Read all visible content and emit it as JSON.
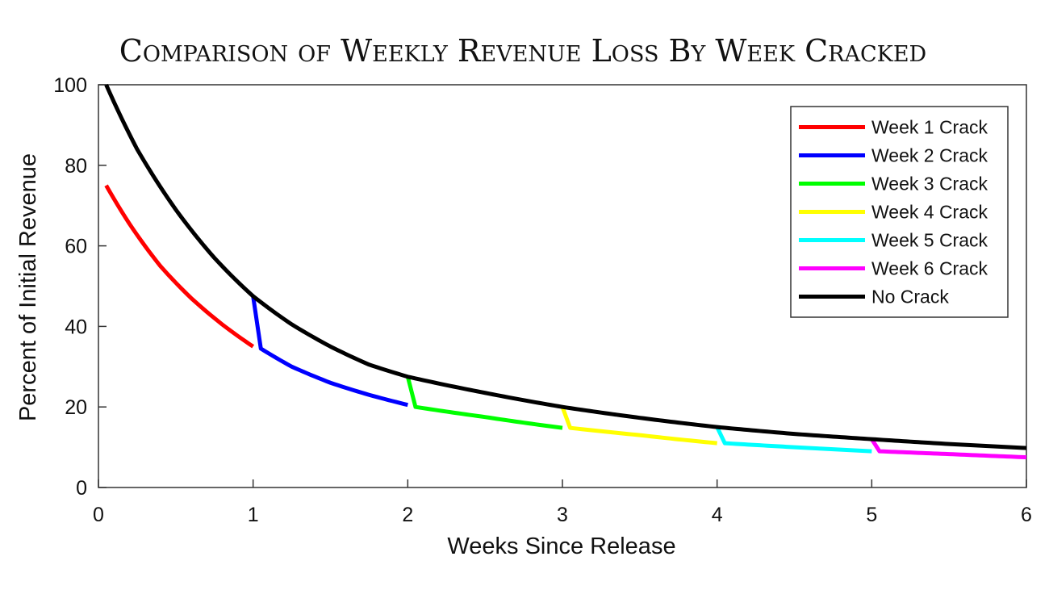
{
  "chart_data": {
    "type": "line",
    "title": "Comparison of Weekly Revenue Loss By Week Cracked",
    "xlabel": "Weeks Since Release",
    "ylabel": "Percent of Initial Revenue",
    "xlim": [
      0,
      6
    ],
    "ylim": [
      0,
      100
    ],
    "xticks": [
      0,
      1,
      2,
      3,
      4,
      5,
      6
    ],
    "yticks": [
      0,
      20,
      40,
      60,
      80,
      100
    ],
    "grid": false,
    "legend_position": "top-right",
    "series": [
      {
        "name": "Week 1 Crack",
        "color": "#ff0000",
        "x": [
          0.05,
          0.2,
          0.4,
          0.6,
          0.8,
          1.0
        ],
        "y": [
          75,
          65.5,
          55,
          47,
          40.5,
          35
        ]
      },
      {
        "name": "Week 2 Crack",
        "color": "#0000ff",
        "x": [
          1.0,
          1.05,
          1.25,
          1.5,
          1.75,
          2.0
        ],
        "y": [
          47.5,
          34.5,
          30,
          26,
          23,
          20.5
        ]
      },
      {
        "name": "Week 3 Crack",
        "color": "#00ff00",
        "x": [
          2.0,
          2.05,
          2.5,
          3.0
        ],
        "y": [
          27.5,
          20,
          17.5,
          14.8
        ]
      },
      {
        "name": "Week 4 Crack",
        "color": "#ffff00",
        "x": [
          3.0,
          3.05,
          3.5,
          4.0
        ],
        "y": [
          20,
          14.8,
          13,
          11
        ]
      },
      {
        "name": "Week 5 Crack",
        "color": "#00ffff",
        "x": [
          4.0,
          4.05,
          4.5,
          5.0
        ],
        "y": [
          15,
          11,
          10,
          9
        ]
      },
      {
        "name": "Week 6 Crack",
        "color": "#ff00ff",
        "x": [
          5.0,
          5.05,
          5.5,
          6.0
        ],
        "y": [
          12,
          9,
          8.3,
          7.5
        ]
      },
      {
        "name": "No Crack",
        "color": "#000000",
        "x": [
          0.05,
          0.25,
          0.5,
          0.75,
          1.0,
          1.25,
          1.5,
          1.75,
          2.0,
          2.5,
          3.0,
          3.5,
          4.0,
          4.5,
          5.0,
          5.5,
          6.0
        ],
        "y": [
          100,
          84,
          69,
          57,
          47.5,
          40.5,
          35,
          30.5,
          27.5,
          23.5,
          20,
          17.3,
          15,
          13.3,
          12,
          10.8,
          9.8
        ]
      }
    ]
  }
}
